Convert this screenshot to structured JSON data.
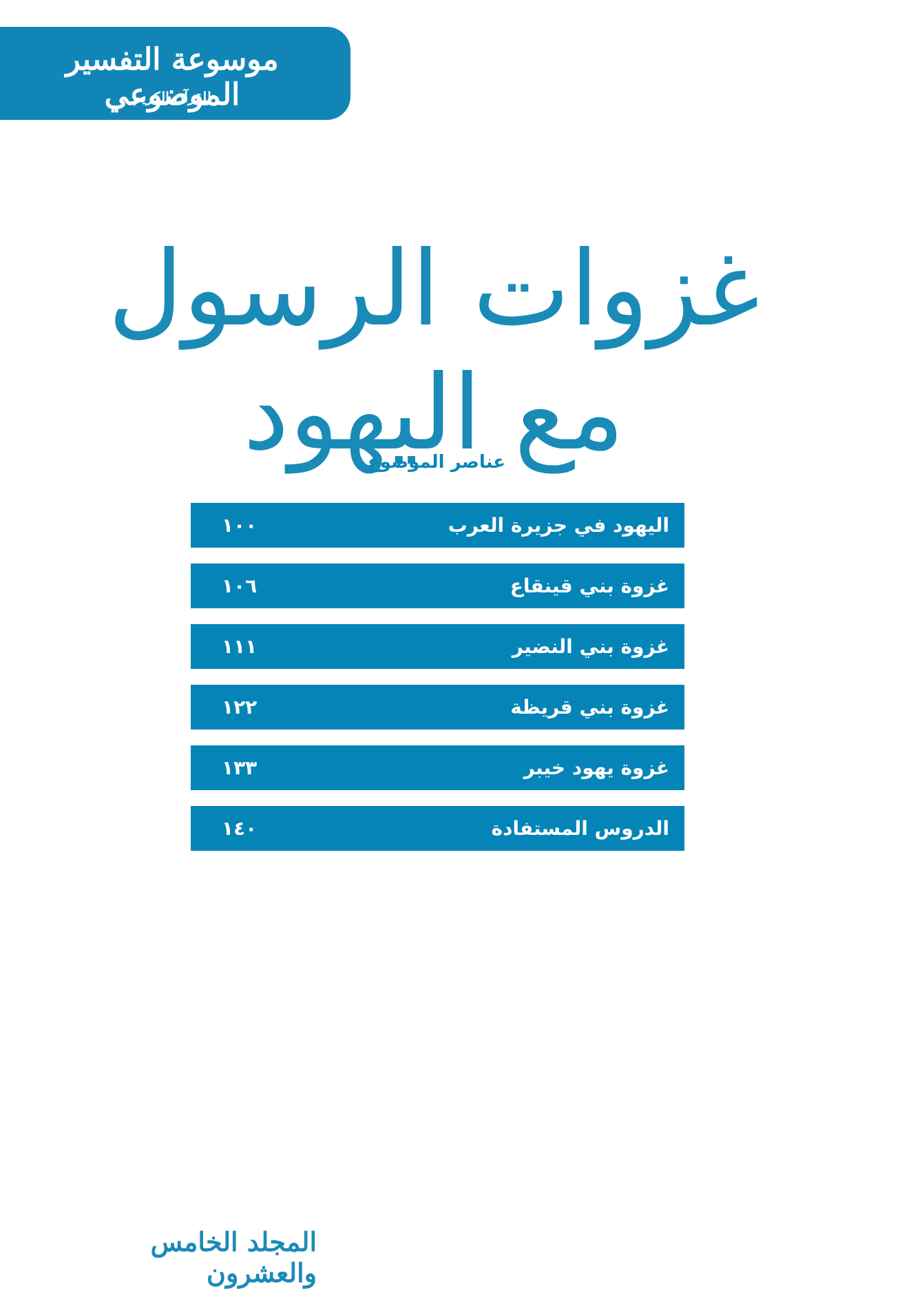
{
  "header": {
    "series_title": "موسوعة التفسير الموضوعي",
    "series_subtitle": "للقرآن الكريم"
  },
  "title": "غزوات الرسول مع اليهود",
  "contents": {
    "heading": "عناصر الموضوع",
    "items": [
      {
        "label": "اليهود في جزيرة العرب",
        "page": "١٠٠"
      },
      {
        "label": "غزوة بني قينقاع",
        "page": "١٠٦"
      },
      {
        "label": "غزوة بني النضير",
        "page": "١١١"
      },
      {
        "label": "غزوة بني قريظة",
        "page": "١٢٢"
      },
      {
        "label": "غزوة يهود خيبر",
        "page": "١٣٣"
      },
      {
        "label": "الدروس المستفادة",
        "page": "١٤٠"
      }
    ]
  },
  "footer": {
    "volume": "المجلد الخامس والعشرون"
  }
}
